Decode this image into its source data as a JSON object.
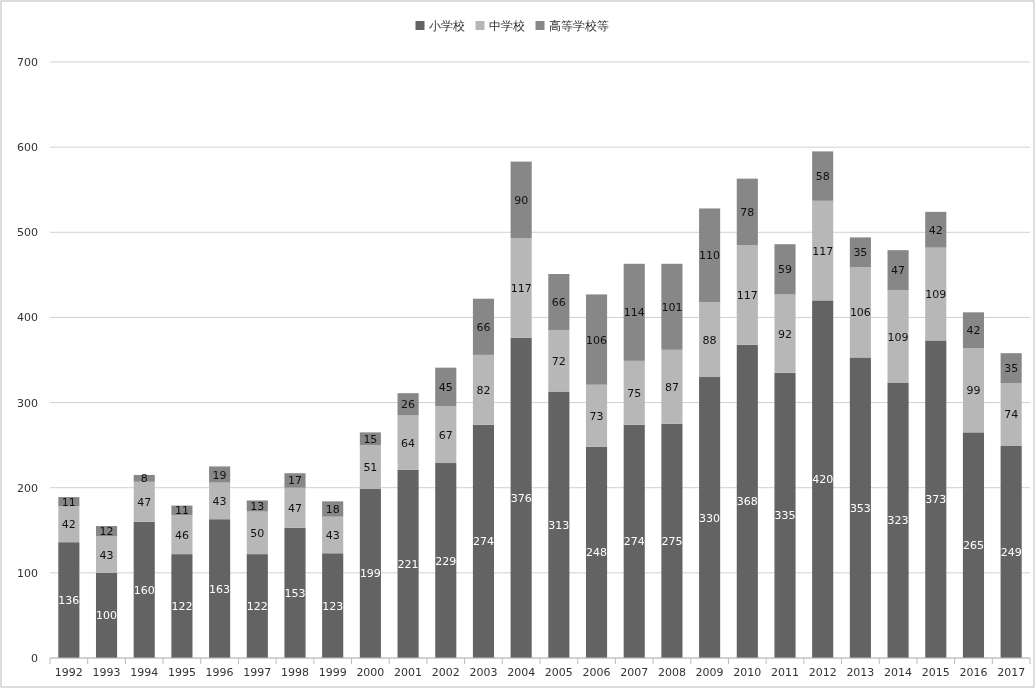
{
  "chart_data": {
    "type": "bar",
    "stacked": true,
    "data_labels": true,
    "grid": "y",
    "legend": "top",
    "ylim": [
      0,
      700
    ],
    "yticks": [
      0,
      100,
      200,
      300,
      400,
      500,
      600,
      700
    ],
    "categories": [
      "1992",
      "1993",
      "1994",
      "1995",
      "1996",
      "1997",
      "1998",
      "1999",
      "2000",
      "2001",
      "2002",
      "2003",
      "2004",
      "2005",
      "2006",
      "2007",
      "2008",
      "2009",
      "2010",
      "2011",
      "2012",
      "2013",
      "2014",
      "2015",
      "2016",
      "2017"
    ],
    "series": [
      {
        "name": "小学校",
        "color": "#636363",
        "values": [
          136,
          100,
          160,
          122,
          163,
          122,
          153,
          123,
          199,
          221,
          229,
          274,
          376,
          313,
          248,
          274,
          275,
          330,
          368,
          335,
          420,
          353,
          323,
          373,
          265,
          249
        ]
      },
      {
        "name": "中学校",
        "color": "#b7b7b7",
        "values": [
          42,
          43,
          47,
          46,
          43,
          50,
          47,
          43,
          51,
          64,
          67,
          82,
          117,
          72,
          73,
          75,
          87,
          88,
          117,
          92,
          117,
          106,
          109,
          109,
          99,
          74
        ]
      },
      {
        "name": "高等学校等",
        "color": "#878787",
        "values": [
          11,
          12,
          8,
          11,
          19,
          13,
          17,
          18,
          15,
          26,
          45,
          66,
          90,
          66,
          106,
          114,
          101,
          110,
          78,
          59,
          58,
          35,
          47,
          42,
          42,
          35
        ]
      }
    ]
  }
}
